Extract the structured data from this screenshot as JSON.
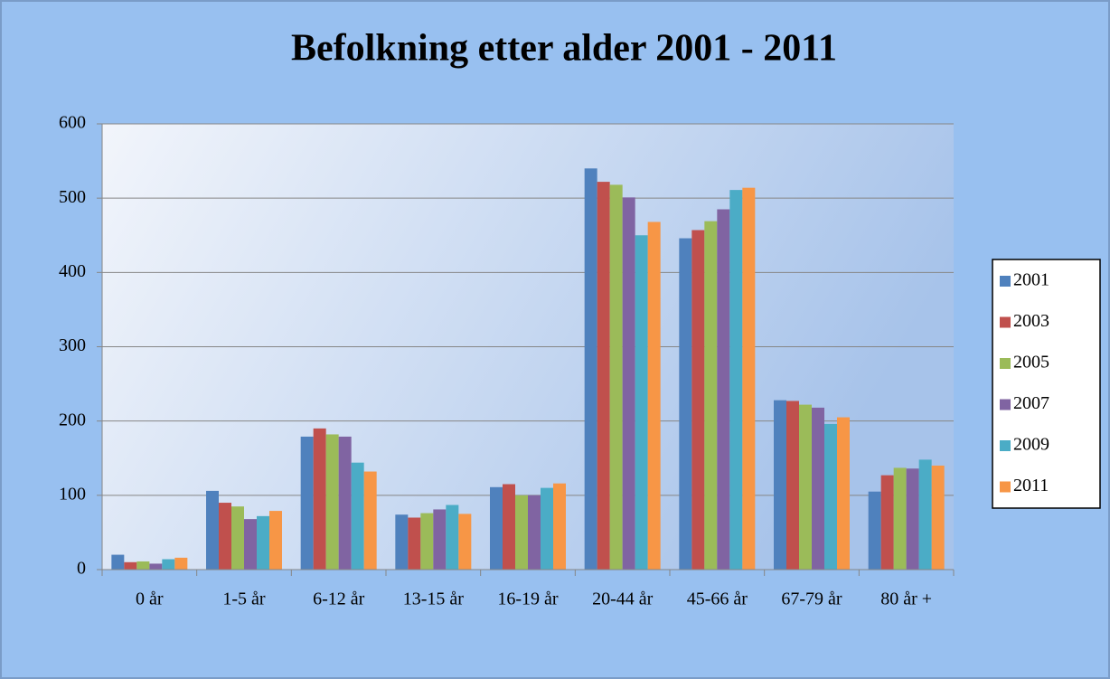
{
  "chart_data": {
    "type": "bar",
    "title": "Befolkning etter alder 2001 - 2011",
    "categories": [
      "0 år",
      "1-5 år",
      "6-12 år",
      "13-15 år",
      "16-19 år",
      "20-44 år",
      "45-66 år",
      "67-79 år",
      "80 år +"
    ],
    "series": [
      {
        "name": "2001",
        "color": "#4f81bd",
        "values": [
          20,
          106,
          179,
          74,
          111,
          540,
          446,
          228,
          105
        ]
      },
      {
        "name": "2003",
        "color": "#c0504d",
        "values": [
          10,
          90,
          190,
          70,
          115,
          522,
          457,
          227,
          127
        ]
      },
      {
        "name": "2005",
        "color": "#9bbb59",
        "values": [
          11,
          85,
          182,
          76,
          100,
          518,
          469,
          222,
          137
        ]
      },
      {
        "name": "2007",
        "color": "#8064a2",
        "values": [
          8,
          68,
          179,
          81,
          100,
          501,
          485,
          218,
          136
        ]
      },
      {
        "name": "2009",
        "color": "#4bacc6",
        "values": [
          14,
          72,
          144,
          87,
          110,
          450,
          511,
          196,
          148
        ]
      },
      {
        "name": "2011",
        "color": "#f79646",
        "values": [
          16,
          79,
          132,
          75,
          116,
          468,
          514,
          205,
          140
        ]
      }
    ],
    "ylim": [
      0,
      600
    ],
    "yticks": [
      0,
      100,
      200,
      300,
      400,
      500,
      600
    ],
    "grid": true,
    "legend": "right"
  }
}
